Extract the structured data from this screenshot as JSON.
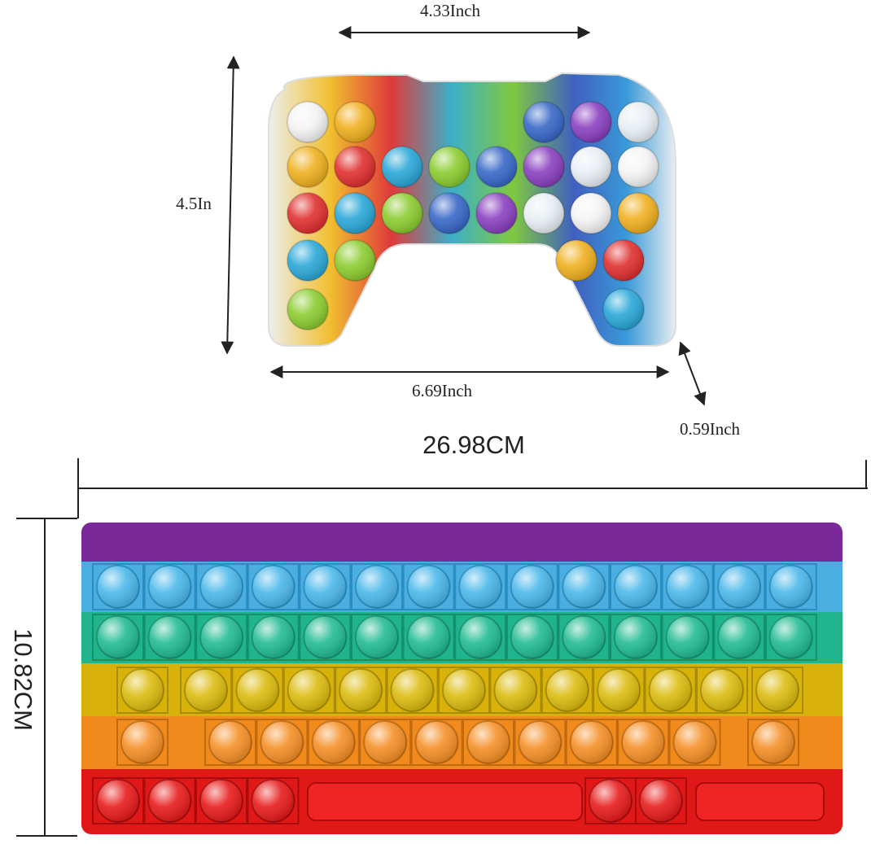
{
  "top_dimensions": {
    "width": "4.33Inch",
    "height": "4.5In",
    "length": "6.69Inch",
    "thickness": "0.59Inch"
  },
  "bottom_dimensions": {
    "width": "26.98CM",
    "height": "10.82CM"
  }
}
